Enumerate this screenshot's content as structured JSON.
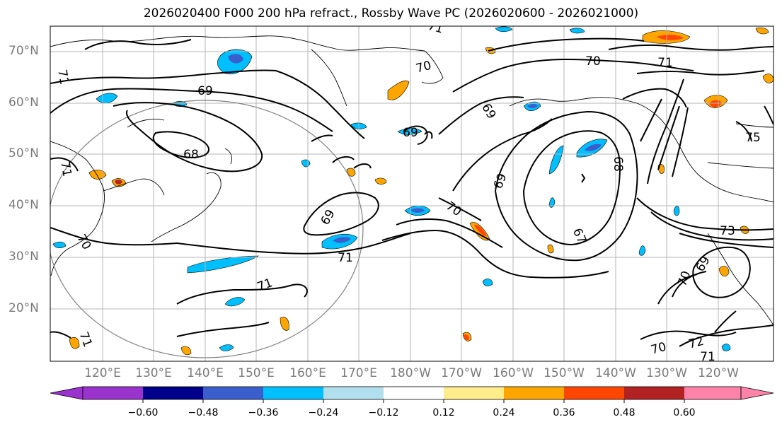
{
  "title": "2026020400 F000 200 hPa refract., Rossby Wave PC (2026020600 - 2026021000)",
  "lat_labels": [
    "70°N",
    "60°N",
    "50°N",
    "40°N",
    "30°N",
    "20°N"
  ],
  "lon_labels": [
    "120°E",
    "130°E",
    "140°E",
    "150°E",
    "160°E",
    "170°E",
    "180°W",
    "170°W",
    "160°W",
    "150°W",
    "140°W",
    "130°W",
    "120°W"
  ],
  "colorbar": {
    "tick_labels": [
      "−0.60",
      "−0.48",
      "−0.36",
      "−0.24",
      "−0.12",
      "0.12",
      "0.24",
      "0.36",
      "0.48",
      "0.60"
    ],
    "colors": [
      "#9a32cd",
      "#00008b",
      "#3a5fcd",
      "#00bfff",
      "#b2dfee",
      "#ffffff",
      "#ffec8b",
      "#ffa500",
      "#ff4500",
      "#b22222",
      "#ff82ab"
    ]
  },
  "contour_labels": [
    "71",
    "69",
    "68",
    "71",
    "71",
    "70",
    "70",
    "71",
    "69",
    "70",
    "69",
    "69",
    "68",
    "67",
    "70",
    "69",
    "73",
    "75",
    "71",
    "71",
    "70",
    "72",
    "71",
    "71",
    "69"
  ],
  "colors": {
    "contour": "#000000",
    "coast": "#000000",
    "grid": "#b4b4b4",
    "circle": "#808080"
  }
}
